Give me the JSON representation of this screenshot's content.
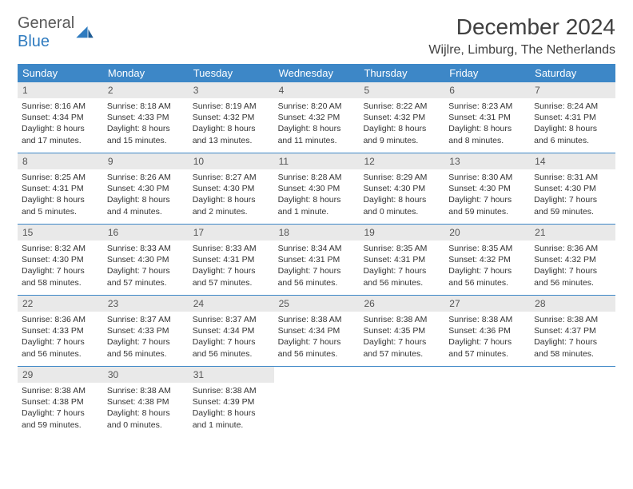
{
  "logo": {
    "line1": "General",
    "line2": "Blue",
    "brand_color": "#2f7bbf",
    "gray": "#595959"
  },
  "title": "December 2024",
  "location": "Wijlre, Limburg, The Netherlands",
  "colors": {
    "header_bg": "#3d87c7",
    "header_fg": "#ffffff",
    "daynum_bg": "#e9e9e9",
    "daynum_fg": "#555555",
    "body_fg": "#333333",
    "rule": "#3d87c7"
  },
  "days_of_week": [
    "Sunday",
    "Monday",
    "Tuesday",
    "Wednesday",
    "Thursday",
    "Friday",
    "Saturday"
  ],
  "weeks": [
    [
      {
        "n": "1",
        "sunrise": "Sunrise: 8:16 AM",
        "sunset": "Sunset: 4:34 PM",
        "day1": "Daylight: 8 hours",
        "day2": "and 17 minutes."
      },
      {
        "n": "2",
        "sunrise": "Sunrise: 8:18 AM",
        "sunset": "Sunset: 4:33 PM",
        "day1": "Daylight: 8 hours",
        "day2": "and 15 minutes."
      },
      {
        "n": "3",
        "sunrise": "Sunrise: 8:19 AM",
        "sunset": "Sunset: 4:32 PM",
        "day1": "Daylight: 8 hours",
        "day2": "and 13 minutes."
      },
      {
        "n": "4",
        "sunrise": "Sunrise: 8:20 AM",
        "sunset": "Sunset: 4:32 PM",
        "day1": "Daylight: 8 hours",
        "day2": "and 11 minutes."
      },
      {
        "n": "5",
        "sunrise": "Sunrise: 8:22 AM",
        "sunset": "Sunset: 4:32 PM",
        "day1": "Daylight: 8 hours",
        "day2": "and 9 minutes."
      },
      {
        "n": "6",
        "sunrise": "Sunrise: 8:23 AM",
        "sunset": "Sunset: 4:31 PM",
        "day1": "Daylight: 8 hours",
        "day2": "and 8 minutes."
      },
      {
        "n": "7",
        "sunrise": "Sunrise: 8:24 AM",
        "sunset": "Sunset: 4:31 PM",
        "day1": "Daylight: 8 hours",
        "day2": "and 6 minutes."
      }
    ],
    [
      {
        "n": "8",
        "sunrise": "Sunrise: 8:25 AM",
        "sunset": "Sunset: 4:31 PM",
        "day1": "Daylight: 8 hours",
        "day2": "and 5 minutes."
      },
      {
        "n": "9",
        "sunrise": "Sunrise: 8:26 AM",
        "sunset": "Sunset: 4:30 PM",
        "day1": "Daylight: 8 hours",
        "day2": "and 4 minutes."
      },
      {
        "n": "10",
        "sunrise": "Sunrise: 8:27 AM",
        "sunset": "Sunset: 4:30 PM",
        "day1": "Daylight: 8 hours",
        "day2": "and 2 minutes."
      },
      {
        "n": "11",
        "sunrise": "Sunrise: 8:28 AM",
        "sunset": "Sunset: 4:30 PM",
        "day1": "Daylight: 8 hours",
        "day2": "and 1 minute."
      },
      {
        "n": "12",
        "sunrise": "Sunrise: 8:29 AM",
        "sunset": "Sunset: 4:30 PM",
        "day1": "Daylight: 8 hours",
        "day2": "and 0 minutes."
      },
      {
        "n": "13",
        "sunrise": "Sunrise: 8:30 AM",
        "sunset": "Sunset: 4:30 PM",
        "day1": "Daylight: 7 hours",
        "day2": "and 59 minutes."
      },
      {
        "n": "14",
        "sunrise": "Sunrise: 8:31 AM",
        "sunset": "Sunset: 4:30 PM",
        "day1": "Daylight: 7 hours",
        "day2": "and 59 minutes."
      }
    ],
    [
      {
        "n": "15",
        "sunrise": "Sunrise: 8:32 AM",
        "sunset": "Sunset: 4:30 PM",
        "day1": "Daylight: 7 hours",
        "day2": "and 58 minutes."
      },
      {
        "n": "16",
        "sunrise": "Sunrise: 8:33 AM",
        "sunset": "Sunset: 4:30 PM",
        "day1": "Daylight: 7 hours",
        "day2": "and 57 minutes."
      },
      {
        "n": "17",
        "sunrise": "Sunrise: 8:33 AM",
        "sunset": "Sunset: 4:31 PM",
        "day1": "Daylight: 7 hours",
        "day2": "and 57 minutes."
      },
      {
        "n": "18",
        "sunrise": "Sunrise: 8:34 AM",
        "sunset": "Sunset: 4:31 PM",
        "day1": "Daylight: 7 hours",
        "day2": "and 56 minutes."
      },
      {
        "n": "19",
        "sunrise": "Sunrise: 8:35 AM",
        "sunset": "Sunset: 4:31 PM",
        "day1": "Daylight: 7 hours",
        "day2": "and 56 minutes."
      },
      {
        "n": "20",
        "sunrise": "Sunrise: 8:35 AM",
        "sunset": "Sunset: 4:32 PM",
        "day1": "Daylight: 7 hours",
        "day2": "and 56 minutes."
      },
      {
        "n": "21",
        "sunrise": "Sunrise: 8:36 AM",
        "sunset": "Sunset: 4:32 PM",
        "day1": "Daylight: 7 hours",
        "day2": "and 56 minutes."
      }
    ],
    [
      {
        "n": "22",
        "sunrise": "Sunrise: 8:36 AM",
        "sunset": "Sunset: 4:33 PM",
        "day1": "Daylight: 7 hours",
        "day2": "and 56 minutes."
      },
      {
        "n": "23",
        "sunrise": "Sunrise: 8:37 AM",
        "sunset": "Sunset: 4:33 PM",
        "day1": "Daylight: 7 hours",
        "day2": "and 56 minutes."
      },
      {
        "n": "24",
        "sunrise": "Sunrise: 8:37 AM",
        "sunset": "Sunset: 4:34 PM",
        "day1": "Daylight: 7 hours",
        "day2": "and 56 minutes."
      },
      {
        "n": "25",
        "sunrise": "Sunrise: 8:38 AM",
        "sunset": "Sunset: 4:34 PM",
        "day1": "Daylight: 7 hours",
        "day2": "and 56 minutes."
      },
      {
        "n": "26",
        "sunrise": "Sunrise: 8:38 AM",
        "sunset": "Sunset: 4:35 PM",
        "day1": "Daylight: 7 hours",
        "day2": "and 57 minutes."
      },
      {
        "n": "27",
        "sunrise": "Sunrise: 8:38 AM",
        "sunset": "Sunset: 4:36 PM",
        "day1": "Daylight: 7 hours",
        "day2": "and 57 minutes."
      },
      {
        "n": "28",
        "sunrise": "Sunrise: 8:38 AM",
        "sunset": "Sunset: 4:37 PM",
        "day1": "Daylight: 7 hours",
        "day2": "and 58 minutes."
      }
    ],
    [
      {
        "n": "29",
        "sunrise": "Sunrise: 8:38 AM",
        "sunset": "Sunset: 4:38 PM",
        "day1": "Daylight: 7 hours",
        "day2": "and 59 minutes."
      },
      {
        "n": "30",
        "sunrise": "Sunrise: 8:38 AM",
        "sunset": "Sunset: 4:38 PM",
        "day1": "Daylight: 8 hours",
        "day2": "and 0 minutes."
      },
      {
        "n": "31",
        "sunrise": "Sunrise: 8:38 AM",
        "sunset": "Sunset: 4:39 PM",
        "day1": "Daylight: 8 hours",
        "day2": "and 1 minute."
      },
      null,
      null,
      null,
      null
    ]
  ]
}
